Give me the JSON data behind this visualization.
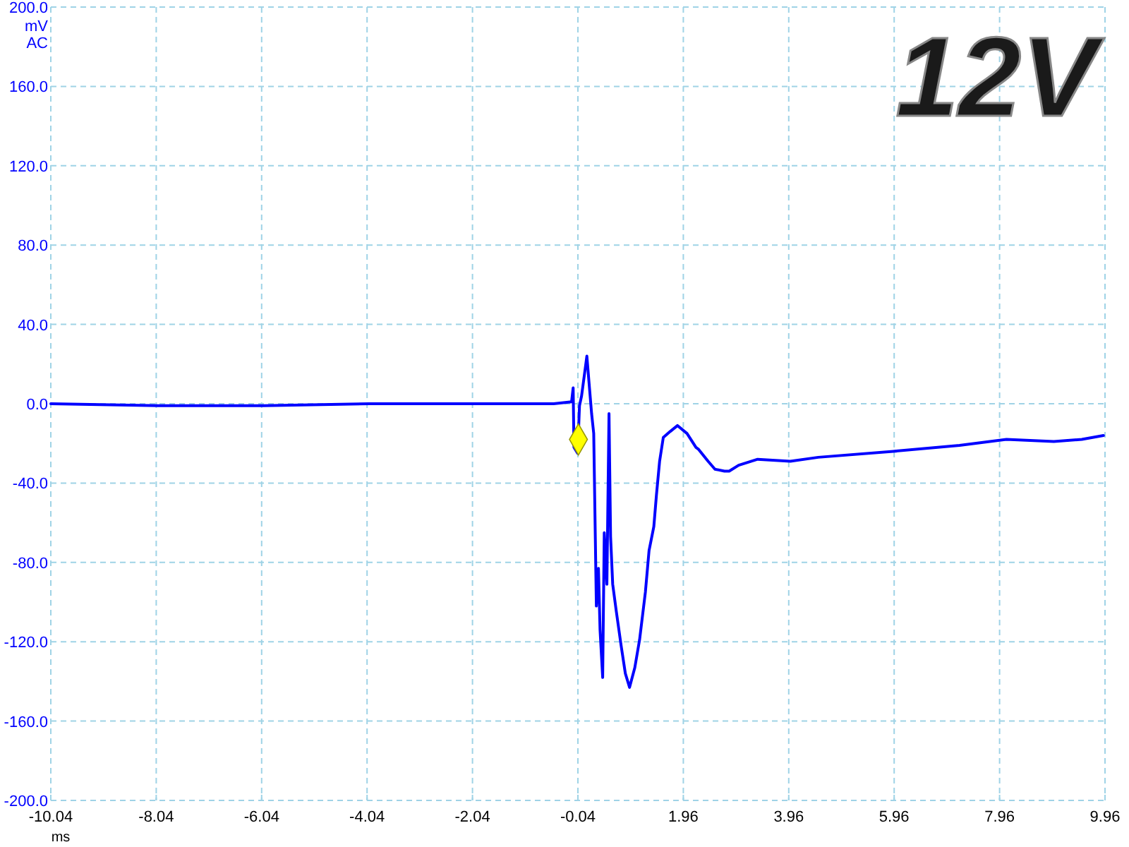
{
  "chart_data": {
    "type": "line",
    "title": "12V",
    "xlabel": "ms",
    "ylabel": "mV",
    "annotations": [
      "AC"
    ],
    "xlim": [
      -10.04,
      9.96
    ],
    "xticks": [
      -10.04,
      -8.04,
      -6.04,
      -4.04,
      -2.04,
      -0.04,
      1.96,
      3.96,
      5.96,
      7.96,
      9.96
    ],
    "ylim": [
      -200,
      200
    ],
    "yticks": [
      {
        "value": -200,
        "label": "-200.0"
      },
      {
        "value": -160,
        "label": "-160.0"
      },
      {
        "value": -120,
        "label": "-120.0"
      },
      {
        "value": -80,
        "label": "-80.0"
      },
      {
        "value": -40,
        "label": "-40.0"
      },
      {
        "value": 0,
        "label": "0.0"
      },
      {
        "value": 40,
        "label": "40.0"
      },
      {
        "value": 80,
        "label": "80.0"
      },
      {
        "value": 120,
        "label": "120.0"
      },
      {
        "value": 160,
        "label": "160.0"
      },
      {
        "value": 200,
        "label": "200.0"
      }
    ],
    "grid": true,
    "line_style": "solid",
    "series": [
      {
        "color": "#0000ff",
        "x": [
          -10.04,
          -8,
          -6,
          -4,
          -2,
          -0.5,
          -0.16,
          -0.13,
          -0.115,
          -0.045,
          -0.01,
          0.03,
          0.06,
          0.13,
          0.17,
          0.22,
          0.26,
          0.29,
          0.31,
          0.35,
          0.38,
          0.43,
          0.46,
          0.51,
          0.55,
          0.58,
          0.62,
          0.69,
          0.78,
          0.86,
          0.94,
          1.04,
          1.13,
          1.24,
          1.31,
          1.4,
          1.45,
          1.51,
          1.58,
          1.71,
          1.85,
          2.03,
          2.2,
          2.25,
          2.43,
          2.56,
          2.74,
          2.83,
          3.01,
          3.37,
          3.99,
          4.52,
          5.94,
          7.2,
          8.09,
          8.99,
          9.52,
          9.93
        ],
        "values": [
          0,
          -1,
          -1,
          0,
          0,
          0,
          1,
          8,
          -22,
          -25,
          -1,
          4,
          10,
          24,
          11,
          -5,
          -15,
          -67,
          -102,
          -83,
          -114,
          -138,
          -65,
          -91,
          -5,
          -67,
          -91,
          -105,
          -122,
          -136,
          -143,
          -133,
          -119,
          -95,
          -74,
          -62,
          -46,
          -29,
          -17,
          -14,
          -11,
          -15,
          -22,
          -23,
          -29,
          -33,
          -34,
          -34,
          -31,
          -28,
          -29,
          -27,
          -24,
          -21,
          -18,
          -19,
          -18,
          -16
        ]
      },
      {
        "type": "scatter",
        "marker": "diamond",
        "color": "#ffff00",
        "x": [
          -0.03
        ],
        "values": [
          -18
        ]
      }
    ]
  }
}
